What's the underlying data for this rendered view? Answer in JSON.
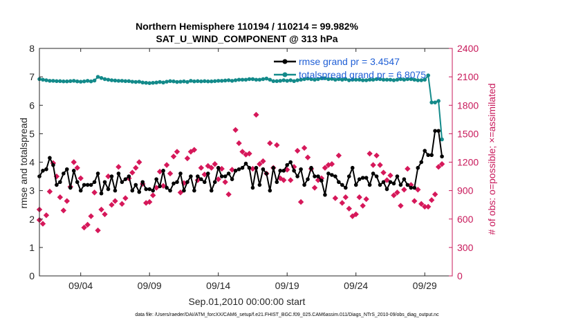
{
  "chart_data": {
    "type": "line",
    "title": "Northern Hemisphere 110194 / 110214 = 99.982%",
    "subtitle": "SAT_U_WIND_COMPONENT @ 313 hPa",
    "xlabel": "Sep.01,2010 00:00:00 start",
    "ylabel_left": "rmse and totalspread",
    "ylabel_right": "# of obs: o=possible; ×=assimilated",
    "xlim": [
      0,
      120
    ],
    "ylim_left": [
      0,
      8
    ],
    "ylim_right": [
      0,
      2400
    ],
    "x_ticks": [
      {
        "x": 12,
        "label": "09/04"
      },
      {
        "x": 32,
        "label": "09/09"
      },
      {
        "x": 52,
        "label": "09/14"
      },
      {
        "x": 72,
        "label": "09/19"
      },
      {
        "x": 92,
        "label": "09/24"
      },
      {
        "x": 112,
        "label": "09/29"
      }
    ],
    "y_ticks_left": [
      0,
      1,
      2,
      3,
      4,
      5,
      6,
      7,
      8
    ],
    "y_ticks_right": [
      0,
      300,
      600,
      900,
      1200,
      1500,
      1800,
      2100,
      2400
    ],
    "legend": {
      "position": "top-right",
      "entries": [
        {
          "label": "rmse grand pr = 3.4547",
          "color": "#000000"
        },
        {
          "label": "totalspread grand pr = 6.8075",
          "color": "#138a8a"
        }
      ]
    },
    "colors": {
      "rmse": "#000000",
      "spread": "#138a8a",
      "obs": "#d6185a",
      "right_axis": "#c8185a"
    },
    "series": [
      {
        "name": "rmse",
        "axis": "left",
        "x": [
          0,
          1,
          2,
          3,
          4,
          5,
          6,
          7,
          8,
          9,
          10,
          11,
          12,
          13,
          14,
          15,
          16,
          17,
          18,
          19,
          20,
          21,
          22,
          23,
          24,
          25,
          26,
          27,
          28,
          29,
          30,
          31,
          32,
          33,
          34,
          35,
          36,
          37,
          38,
          39,
          40,
          41,
          42,
          43,
          44,
          45,
          46,
          47,
          48,
          49,
          50,
          51,
          52,
          53,
          54,
          55,
          56,
          57,
          58,
          59,
          60,
          61,
          62,
          63,
          64,
          65,
          66,
          67,
          68,
          69,
          70,
          71,
          72,
          73,
          74,
          75,
          76,
          77,
          78,
          79,
          80,
          81,
          82,
          83,
          84,
          85,
          86,
          87,
          88,
          89,
          90,
          91,
          92,
          93,
          94,
          95,
          96,
          97,
          98,
          99,
          100,
          101,
          102,
          103,
          104,
          105,
          106,
          107,
          108,
          109,
          110,
          111,
          112,
          113,
          114,
          115,
          116,
          117
        ],
        "values": [
          3.5,
          3.7,
          3.75,
          4.15,
          3.9,
          3.2,
          3.3,
          3.6,
          3.75,
          3.1,
          3.7,
          3.3,
          3.0,
          3.2,
          3.2,
          3.2,
          3.3,
          3.6,
          2.9,
          3.3,
          3.05,
          3.5,
          3.0,
          3.6,
          3.3,
          3.4,
          3.5,
          3.0,
          3.2,
          2.95,
          3.3,
          3.05,
          3.05,
          3.0,
          3.4,
          3.15,
          3.7,
          3.1,
          3.0,
          3.25,
          3.3,
          3.6,
          3.0,
          3.3,
          3.5,
          3.0,
          3.5,
          3.4,
          3.3,
          3.6,
          3.0,
          3.3,
          3.8,
          3.5,
          3.5,
          3.6,
          3.4,
          3.7,
          3.75,
          3.8,
          3.95,
          3.8,
          3.1,
          3.8,
          3.2,
          3.75,
          3.6,
          3.0,
          3.8,
          3.3,
          3.7,
          3.7,
          3.9,
          4.0,
          3.7,
          3.5,
          3.75,
          3.2,
          3.4,
          3.8,
          3.5,
          3.5,
          3.35,
          2.85,
          3.6,
          3.55,
          3.5,
          3.3,
          3.2,
          3.1,
          3.5,
          3.8,
          3.2,
          3.4,
          3.45,
          3.45,
          3.2,
          3.6,
          3.5,
          3.2,
          3.3,
          3.05,
          3.3,
          3.25,
          3.5,
          3.2,
          3.4,
          3.2,
          3.1,
          3.1,
          3.8,
          4.0,
          4.4,
          4.25,
          4.25,
          5.1,
          5.1,
          4.2
        ],
        "point_interval": 1
      },
      {
        "name": "totalspread",
        "axis": "left",
        "x": [
          0,
          1,
          2,
          3,
          4,
          5,
          6,
          7,
          8,
          9,
          10,
          11,
          12,
          13,
          14,
          15,
          16,
          17,
          18,
          19,
          20,
          21,
          22,
          23,
          24,
          25,
          26,
          27,
          28,
          29,
          30,
          31,
          32,
          33,
          34,
          35,
          36,
          37,
          38,
          39,
          40,
          41,
          42,
          43,
          44,
          45,
          46,
          47,
          48,
          49,
          50,
          51,
          52,
          53,
          54,
          55,
          56,
          57,
          58,
          59,
          60,
          61,
          62,
          63,
          64,
          65,
          66,
          67,
          68,
          69,
          70,
          71,
          72,
          73,
          74,
          75,
          76,
          77,
          78,
          79,
          80,
          81,
          82,
          83,
          84,
          85,
          86,
          87,
          88,
          89,
          90,
          91,
          92,
          93,
          94,
          95,
          96,
          97,
          98,
          99,
          100,
          101,
          102,
          103,
          104,
          105,
          106,
          107,
          108,
          109,
          110,
          111,
          112,
          113,
          114,
          115,
          116,
          117
        ],
        "values": [
          6.92,
          6.9,
          6.88,
          6.86,
          6.86,
          6.85,
          6.85,
          6.84,
          6.84,
          6.85,
          6.86,
          6.84,
          6.83,
          6.84,
          6.86,
          6.84,
          6.87,
          7.0,
          6.96,
          6.92,
          6.9,
          6.88,
          6.87,
          6.86,
          6.86,
          6.85,
          6.85,
          6.83,
          6.82,
          6.83,
          6.8,
          6.79,
          6.78,
          6.79,
          6.8,
          6.82,
          6.8,
          6.83,
          6.85,
          6.84,
          6.82,
          6.83,
          6.84,
          6.82,
          6.86,
          6.84,
          6.85,
          6.84,
          6.85,
          6.84,
          6.84,
          6.85,
          6.86,
          6.86,
          6.87,
          6.88,
          6.86,
          6.88,
          6.9,
          6.9,
          6.9,
          6.92,
          6.92,
          6.9,
          6.9,
          6.92,
          6.94,
          6.9,
          6.85,
          6.85,
          6.86,
          6.88,
          6.86,
          6.88,
          6.85,
          6.88,
          6.9,
          6.92,
          6.94,
          6.92,
          6.9,
          6.92,
          6.95,
          6.95,
          6.92,
          6.93,
          6.9,
          6.92,
          6.9,
          6.92,
          6.88,
          6.9,
          6.9,
          6.9,
          6.88,
          6.88,
          6.9,
          6.9,
          6.92,
          6.92,
          6.9,
          6.9,
          6.9,
          6.88,
          6.9,
          6.92,
          6.9,
          6.92,
          6.92,
          6.9,
          6.88,
          6.88,
          6.9,
          7.05,
          6.1,
          6.1,
          6.15,
          4.8
        ],
        "point_interval": 1
      },
      {
        "name": "possible / assimilated obs",
        "axis": "right",
        "marker": "diamond",
        "points": [
          [
            0,
            590
          ],
          [
            0,
            700
          ],
          [
            1,
            550
          ],
          [
            2,
            640
          ],
          [
            3,
            890
          ],
          [
            4,
            1190
          ],
          [
            5,
            1050
          ],
          [
            6,
            830
          ],
          [
            7,
            690
          ],
          [
            8,
            790
          ],
          [
            9,
            940
          ],
          [
            10,
            1200
          ],
          [
            11,
            1140
          ],
          [
            12,
            1030
          ],
          [
            13,
            510
          ],
          [
            14,
            540
          ],
          [
            15,
            630
          ],
          [
            16,
            880
          ],
          [
            17,
            480
          ],
          [
            18,
            700
          ],
          [
            19,
            650
          ],
          [
            20,
            1050
          ],
          [
            21,
            750
          ],
          [
            22,
            790
          ],
          [
            23,
            1150
          ],
          [
            24,
            760
          ],
          [
            25,
            820
          ],
          [
            26,
            1030
          ],
          [
            27,
            1090
          ],
          [
            28,
            1140
          ],
          [
            29,
            1200
          ],
          [
            30,
            970
          ],
          [
            31,
            770
          ],
          [
            32,
            780
          ],
          [
            33,
            850
          ],
          [
            34,
            930
          ],
          [
            35,
            1100
          ],
          [
            36,
            950
          ],
          [
            37,
            1170
          ],
          [
            38,
            1080
          ],
          [
            39,
            1260
          ],
          [
            40,
            1310
          ],
          [
            41,
            880
          ],
          [
            42,
            980
          ],
          [
            43,
            1240
          ],
          [
            44,
            1310
          ],
          [
            45,
            1330
          ],
          [
            46,
            1010
          ],
          [
            47,
            1140
          ],
          [
            48,
            1070
          ],
          [
            49,
            1160
          ],
          [
            50,
            1140
          ],
          [
            51,
            1180
          ],
          [
            52,
            1020
          ],
          [
            53,
            1130
          ],
          [
            54,
            990
          ],
          [
            55,
            860
          ],
          [
            56,
            1120
          ],
          [
            57,
            1540
          ],
          [
            58,
            1400
          ],
          [
            59,
            1310
          ],
          [
            60,
            1280
          ],
          [
            61,
            1290
          ],
          [
            62,
            1130
          ],
          [
            63,
            1700
          ],
          [
            64,
            1180
          ],
          [
            65,
            1210
          ],
          [
            66,
            1080
          ],
          [
            67,
            1400
          ],
          [
            68,
            1140
          ],
          [
            69,
            1380
          ],
          [
            70,
            1030
          ],
          [
            71,
            1010
          ],
          [
            72,
            1120
          ],
          [
            73,
            1010
          ],
          [
            74,
            1150
          ],
          [
            75,
            1320
          ],
          [
            76,
            780
          ],
          [
            77,
            1350
          ],
          [
            78,
            1250
          ],
          [
            79,
            1130
          ],
          [
            80,
            930
          ],
          [
            81,
            1010
          ],
          [
            82,
            1030
          ],
          [
            83,
            1140
          ],
          [
            84,
            1170
          ],
          [
            85,
            1180
          ],
          [
            86,
            820
          ],
          [
            87,
            1270
          ],
          [
            88,
            770
          ],
          [
            89,
            830
          ],
          [
            90,
            710
          ],
          [
            91,
            630
          ],
          [
            92,
            650
          ],
          [
            93,
            830
          ],
          [
            94,
            740
          ],
          [
            95,
            810
          ],
          [
            96,
            1290
          ],
          [
            97,
            1170
          ],
          [
            98,
            1270
          ],
          [
            99,
            1170
          ],
          [
            100,
            1090
          ],
          [
            101,
            1010
          ],
          [
            102,
            1060
          ],
          [
            103,
            850
          ],
          [
            104,
            880
          ],
          [
            105,
            740
          ],
          [
            106,
            910
          ],
          [
            107,
            1130
          ],
          [
            108,
            960
          ],
          [
            109,
            790
          ],
          [
            110,
            910
          ],
          [
            111,
            760
          ],
          [
            112,
            730
          ],
          [
            113,
            730
          ],
          [
            114,
            800
          ],
          [
            115,
            860
          ],
          [
            116,
            1150
          ],
          [
            117,
            1180
          ]
        ]
      }
    ]
  },
  "footer": "data file: /Users/raeder/DAI/ATM_forcXX/CAM6_setup/f.e21.FHIST_BGC.f09_025.CAM6assim.011/Diags_NTrS_2010-09/obs_diag_output.nc"
}
